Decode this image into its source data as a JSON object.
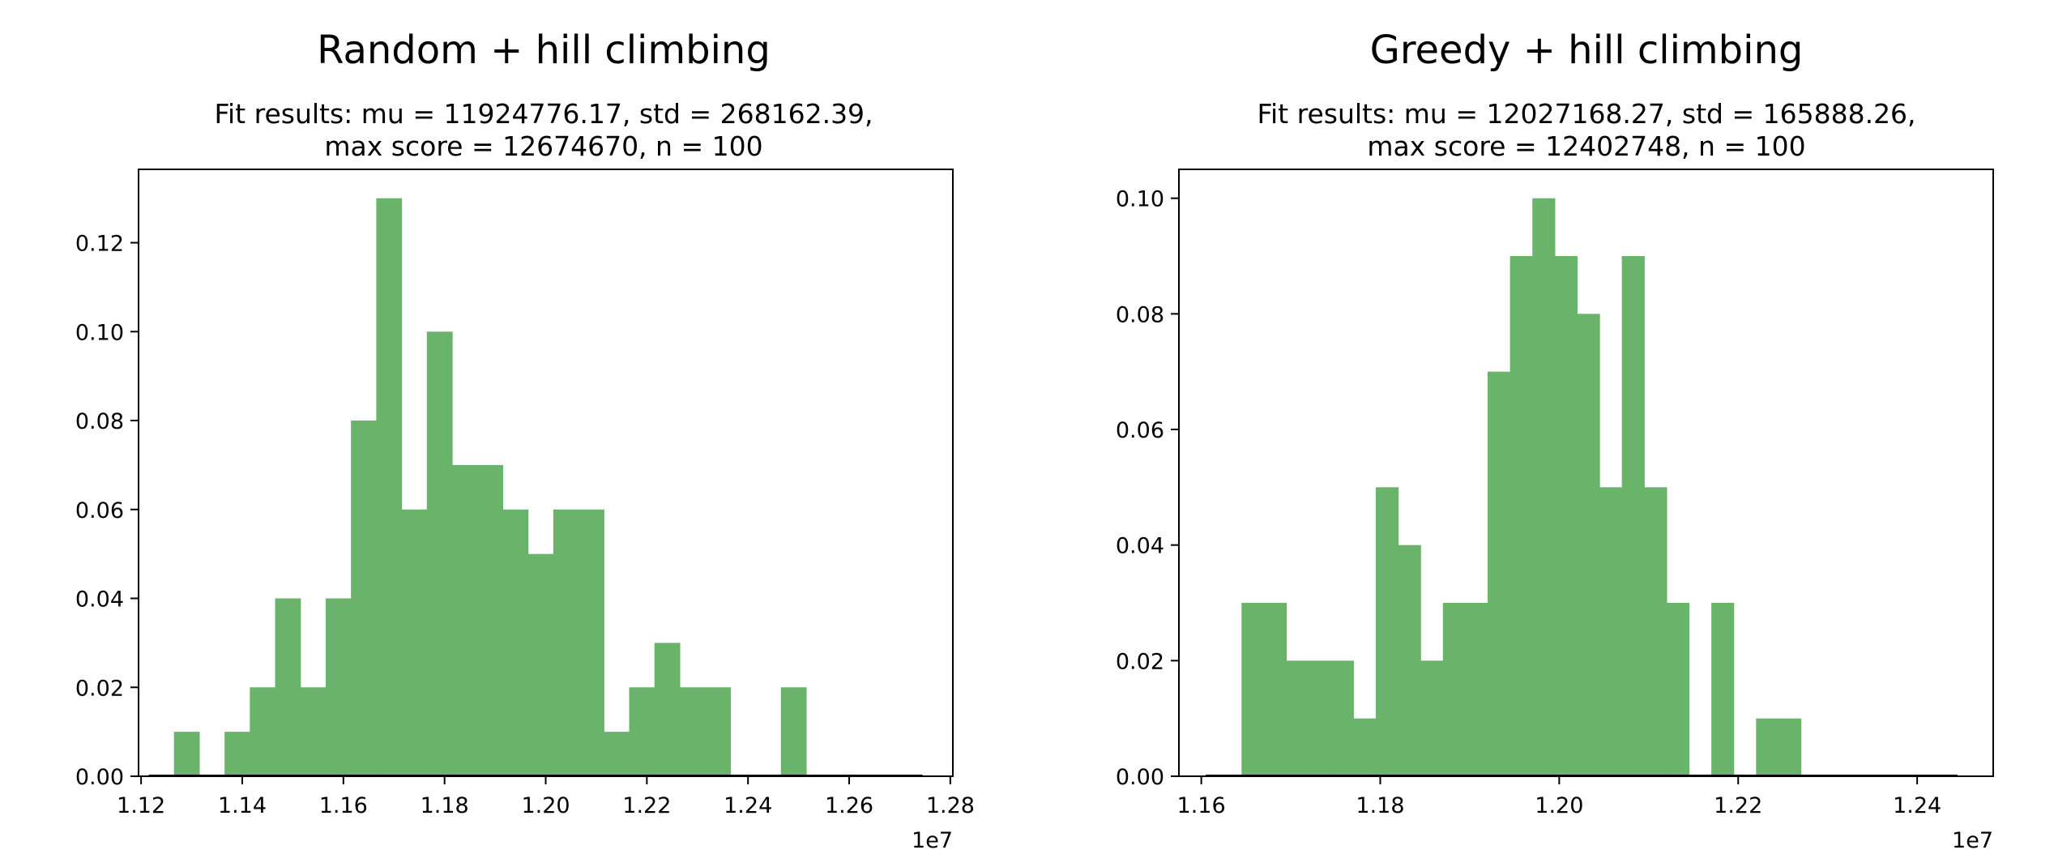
{
  "colors": {
    "bar": "#6ab36a",
    "axis": "#000000",
    "background": "#ffffff"
  },
  "chart_data": [
    {
      "type": "bar",
      "title": "Random + hill climbing",
      "subtitle": [
        "Fit results: mu = 11924776.17,  std = 268162.39,",
        "max score = 12674670, n = 100"
      ],
      "xlabel": "",
      "ylabel": "",
      "x_offset_label": "1e7",
      "xlim": [
        1.1195,
        1.2805
      ],
      "ylim": [
        0,
        0.1365
      ],
      "xticks": [
        1.12,
        1.14,
        1.16,
        1.18,
        1.2,
        1.22,
        1.24,
        1.26,
        1.28
      ],
      "xtick_labels": [
        "1.12",
        "1.14",
        "1.16",
        "1.18",
        "1.20",
        "1.22",
        "1.24",
        "1.26",
        "1.28"
      ],
      "yticks": [
        0,
        0.02,
        0.04,
        0.06,
        0.08,
        0.1,
        0.12
      ],
      "ytick_labels": [
        "0.00",
        "0.02",
        "0.04",
        "0.06",
        "0.08",
        "0.10",
        "0.12"
      ],
      "bin_start": 1.1265,
      "bin_width": 0.005,
      "values": [
        0.01,
        0,
        0.01,
        0.02,
        0.04,
        0.02,
        0.04,
        0.08,
        0.13,
        0.06,
        0.1,
        0.07,
        0.07,
        0.06,
        0.05,
        0.06,
        0.06,
        0.01,
        0.02,
        0.03,
        0.02,
        0.02,
        0,
        0,
        0.02
      ],
      "baseline_range": [
        1.1215,
        1.2745
      ],
      "grid": false
    },
    {
      "type": "bar",
      "title": "Greedy + hill climbing",
      "subtitle": [
        "Fit results: mu = 12027168.27,  std = 165888.26,",
        "max score = 12402748, n = 100"
      ],
      "xlabel": "",
      "ylabel": "",
      "x_offset_label": "1e7",
      "xlim": [
        1.1575,
        1.2485
      ],
      "ylim": [
        0,
        0.105
      ],
      "xticks": [
        1.16,
        1.18,
        1.2,
        1.22,
        1.24
      ],
      "xtick_labels": [
        "1.16",
        "1.18",
        "1.20",
        "1.22",
        "1.24"
      ],
      "yticks": [
        0,
        0.02,
        0.04,
        0.06,
        0.08,
        0.1
      ],
      "ytick_labels": [
        "0.00",
        "0.02",
        "0.04",
        "0.06",
        "0.08",
        "0.10"
      ],
      "bin_start": 1.1645,
      "bin_width": 0.0025,
      "values": [
        0.03,
        0.03,
        0.02,
        0.02,
        0.02,
        0.01,
        0.05,
        0.04,
        0.02,
        0.03,
        0.03,
        0.07,
        0.09,
        0.1,
        0.09,
        0.08,
        0.05,
        0.09,
        0.05,
        0.03,
        0,
        0.03,
        0,
        0.01,
        0.01
      ],
      "baseline_range": [
        1.1605,
        1.2445
      ],
      "grid": false
    }
  ]
}
